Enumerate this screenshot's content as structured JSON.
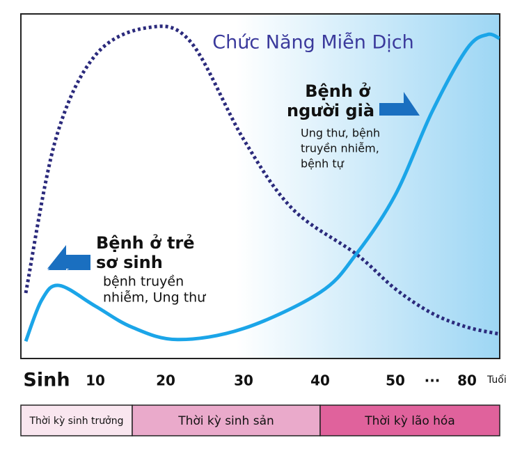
{
  "chart_data": {
    "type": "line",
    "title": "Chức Năng Miễn Dịch",
    "x_label": "Tuổi",
    "xlim": [
      0,
      94
    ],
    "xticks": [
      {
        "value": 3,
        "label": "Sinh"
      },
      10,
      20,
      30,
      40,
      50,
      {
        "value": 65,
        "label": "···"
      },
      80
    ],
    "ylim": [
      0,
      100
    ],
    "series": [
      {
        "name": "Chức Năng Miễn Dịch",
        "color": "#2b2a7c",
        "dashed": true,
        "x": [
          0,
          4.3,
          10,
          17.4,
          23.2,
          30,
          36.4,
          44.8,
          50,
          65,
          80,
          94
        ],
        "values": [
          19,
          63.6,
          88,
          96,
          91.9,
          63.6,
          43.4,
          30.3,
          20.2,
          13.1,
          9.1,
          7.1
        ]
      },
      {
        "name": "Bệnh",
        "color": "#1ba5e8",
        "dashed": false,
        "x": [
          0,
          2.3,
          4.8,
          10,
          15.2,
          21.5,
          30,
          40,
          44.8,
          50,
          65,
          80,
          88.7,
          94
        ],
        "values": [
          5,
          17,
          21.2,
          15.2,
          9.1,
          5.5,
          8.7,
          19.2,
          30.3,
          47.5,
          71.7,
          89.9,
          94,
          92.9
        ]
      }
    ],
    "annotations": [
      {
        "heading": [
          "Bệnh ở",
          "người già"
        ],
        "text": [
          "Ung thư, bệnh",
          "truyền nhiễm,",
          "bệnh tự"
        ]
      },
      {
        "heading": [
          "Bệnh ở trẻ",
          "sơ sinh"
        ],
        "text": [
          "bệnh truyền",
          "nhiễm, Ung thư"
        ]
      }
    ],
    "periods": [
      {
        "label": "Thời kỳ sinh trưởng",
        "color": "#f9e6ef"
      },
      {
        "label": "Thời kỳ sinh sản",
        "color": "#eaaacb"
      },
      {
        "label": "Thời kỳ lão hóa",
        "color": "#e0629c"
      }
    ]
  }
}
